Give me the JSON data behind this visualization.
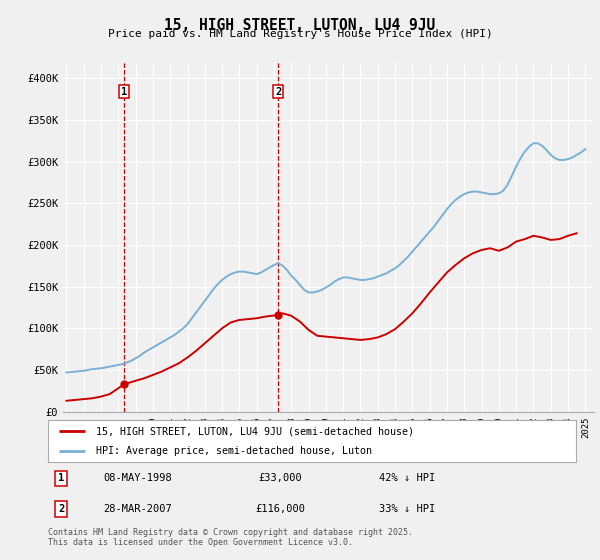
{
  "title": "15, HIGH STREET, LUTON, LU4 9JU",
  "subtitle": "Price paid vs. HM Land Registry's House Price Index (HPI)",
  "footer": "Contains HM Land Registry data © Crown copyright and database right 2025.\nThis data is licensed under the Open Government Licence v3.0.",
  "legend_line1": "15, HIGH STREET, LUTON, LU4 9JU (semi-detached house)",
  "legend_line2": "HPI: Average price, semi-detached house, Luton",
  "sale1_label": "1",
  "sale1_date": "08-MAY-1998",
  "sale1_price": "£33,000",
  "sale1_hpi": "42% ↓ HPI",
  "sale2_label": "2",
  "sale2_date": "28-MAR-2007",
  "sale2_price": "£116,000",
  "sale2_hpi": "33% ↓ HPI",
  "red_color": "#cc0000",
  "blue_color": "#7ab0d4",
  "background_color": "#f0f0f0",
  "grid_color": "#ffffff",
  "ylim": [
    0,
    420000
  ],
  "yticks": [
    0,
    50000,
    100000,
    150000,
    200000,
    250000,
    300000,
    350000,
    400000
  ],
  "ytick_labels": [
    "£0",
    "£50K",
    "£100K",
    "£150K",
    "£200K",
    "£250K",
    "£300K",
    "£350K",
    "£400K"
  ],
  "hpi_years": [
    1995,
    1995.25,
    1995.5,
    1995.75,
    1996,
    1996.25,
    1996.5,
    1996.75,
    1997,
    1997.25,
    1997.5,
    1997.75,
    1998,
    1998.25,
    1998.5,
    1998.75,
    1999,
    1999.25,
    1999.5,
    1999.75,
    2000,
    2000.25,
    2000.5,
    2000.75,
    2001,
    2001.25,
    2001.5,
    2001.75,
    2002,
    2002.25,
    2002.5,
    2002.75,
    2003,
    2003.25,
    2003.5,
    2003.75,
    2004,
    2004.25,
    2004.5,
    2004.75,
    2005,
    2005.25,
    2005.5,
    2005.75,
    2006,
    2006.25,
    2006.5,
    2006.75,
    2007,
    2007.25,
    2007.5,
    2007.75,
    2008,
    2008.25,
    2008.5,
    2008.75,
    2009,
    2009.25,
    2009.5,
    2009.75,
    2010,
    2010.25,
    2010.5,
    2010.75,
    2011,
    2011.25,
    2011.5,
    2011.75,
    2012,
    2012.25,
    2012.5,
    2012.75,
    2013,
    2013.25,
    2013.5,
    2013.75,
    2014,
    2014.25,
    2014.5,
    2014.75,
    2015,
    2015.25,
    2015.5,
    2015.75,
    2016,
    2016.25,
    2016.5,
    2016.75,
    2017,
    2017.25,
    2017.5,
    2017.75,
    2018,
    2018.25,
    2018.5,
    2018.75,
    2019,
    2019.25,
    2019.5,
    2019.75,
    2020,
    2020.25,
    2020.5,
    2020.75,
    2021,
    2021.25,
    2021.5,
    2021.75,
    2022,
    2022.25,
    2022.5,
    2022.75,
    2023,
    2023.25,
    2023.5,
    2023.75,
    2024,
    2024.25,
    2024.5,
    2024.75,
    2025
  ],
  "hpi_values": [
    47000,
    47500,
    48000,
    48500,
    49000,
    50000,
    51000,
    51500,
    52000,
    53000,
    54000,
    55000,
    56000,
    57000,
    59000,
    61000,
    64000,
    67000,
    71000,
    74000,
    77000,
    80000,
    83000,
    86000,
    89000,
    92000,
    96000,
    100000,
    105000,
    112000,
    119000,
    126000,
    133000,
    140000,
    147000,
    153000,
    158000,
    162000,
    165000,
    167000,
    168000,
    168000,
    167000,
    166000,
    165000,
    167000,
    170000,
    173000,
    176000,
    178000,
    175000,
    170000,
    163000,
    158000,
    152000,
    146000,
    143000,
    143000,
    144000,
    146000,
    149000,
    152000,
    156000,
    159000,
    161000,
    161000,
    160000,
    159000,
    158000,
    158000,
    159000,
    160000,
    162000,
    164000,
    166000,
    169000,
    172000,
    176000,
    181000,
    186000,
    192000,
    198000,
    204000,
    210000,
    216000,
    222000,
    229000,
    236000,
    243000,
    249000,
    254000,
    258000,
    261000,
    263000,
    264000,
    264000,
    263000,
    262000,
    261000,
    261000,
    262000,
    265000,
    272000,
    283000,
    294000,
    304000,
    312000,
    318000,
    322000,
    322000,
    319000,
    314000,
    308000,
    304000,
    302000,
    302000,
    303000,
    305000,
    308000,
    311000,
    315000
  ],
  "red_years": [
    1995.0,
    1995.5,
    1996.0,
    1996.5,
    1997.0,
    1997.5,
    1998.35,
    1999.0,
    1999.5,
    2000.0,
    2000.5,
    2001.0,
    2001.5,
    2002.0,
    2002.5,
    2003.0,
    2003.5,
    2004.0,
    2004.5,
    2005.0,
    2005.5,
    2006.0,
    2006.5,
    2007.24,
    2007.5,
    2008.0,
    2008.5,
    2009.0,
    2009.5,
    2010.0,
    2010.5,
    2011.0,
    2011.5,
    2012.0,
    2012.5,
    2013.0,
    2013.5,
    2014.0,
    2014.5,
    2015.0,
    2015.5,
    2016.0,
    2016.5,
    2017.0,
    2017.5,
    2018.0,
    2018.5,
    2019.0,
    2019.5,
    2020.0,
    2020.5,
    2021.0,
    2021.5,
    2022.0,
    2022.5,
    2023.0,
    2023.5,
    2024.0,
    2024.5
  ],
  "red_values": [
    13000,
    14000,
    15000,
    16000,
    18000,
    21000,
    33000,
    37000,
    40000,
    44000,
    48000,
    53000,
    58000,
    65000,
    73000,
    82000,
    91000,
    100000,
    107000,
    110000,
    111000,
    112000,
    114000,
    116000,
    118000,
    115000,
    108000,
    98000,
    91000,
    90000,
    89000,
    88000,
    87000,
    86000,
    87000,
    89000,
    93000,
    99000,
    108000,
    118000,
    130000,
    143000,
    155000,
    167000,
    176000,
    184000,
    190000,
    194000,
    196000,
    193000,
    197000,
    204000,
    207000,
    211000,
    209000,
    206000,
    207000,
    211000,
    214000
  ],
  "sale1_x": 1998.35,
  "sale1_y": 33000,
  "sale2_x": 2007.24,
  "sale2_y": 116000,
  "xlim": [
    1994.8,
    2025.5
  ],
  "xticks": [
    1995,
    1996,
    1997,
    1998,
    1999,
    2000,
    2001,
    2002,
    2003,
    2004,
    2005,
    2006,
    2007,
    2008,
    2009,
    2010,
    2011,
    2012,
    2013,
    2014,
    2015,
    2016,
    2017,
    2018,
    2019,
    2020,
    2021,
    2022,
    2023,
    2024,
    2025
  ]
}
